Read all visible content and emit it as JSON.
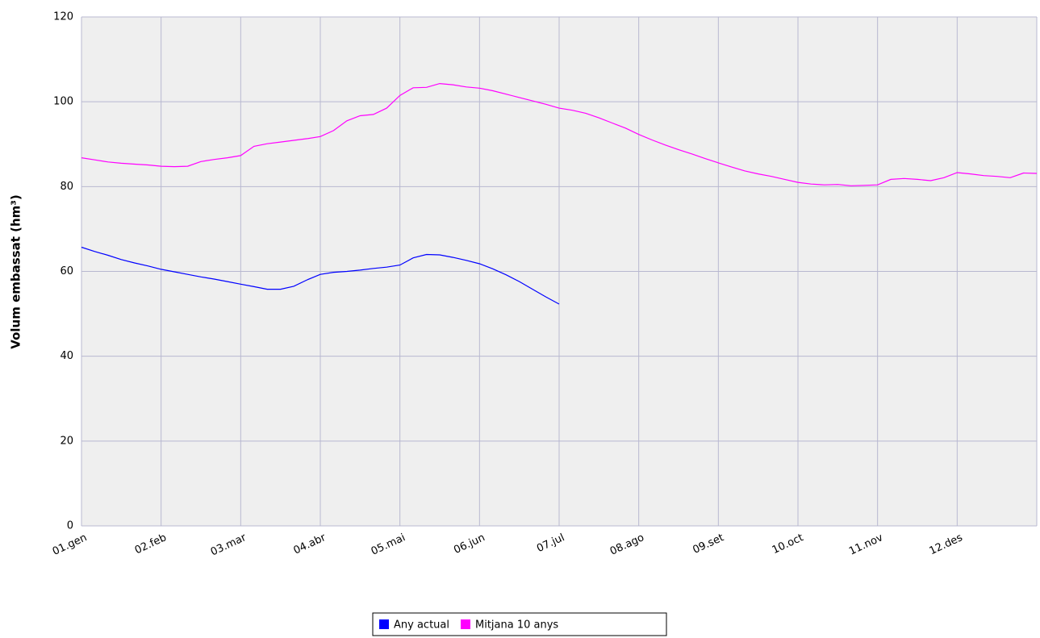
{
  "chart_data": {
    "type": "line",
    "ylabel": "Volum embassat (hm³)",
    "categories": [
      "01.gen",
      null,
      null,
      null,
      null,
      null,
      "02.feb",
      null,
      null,
      null,
      null,
      null,
      "03.mar",
      null,
      null,
      null,
      null,
      null,
      "04.abr",
      null,
      null,
      null,
      null,
      null,
      "05.mai",
      null,
      null,
      null,
      null,
      null,
      "06.jun",
      null,
      null,
      null,
      null,
      null,
      "07.jul",
      null,
      null,
      null,
      null,
      null,
      "08.ago",
      null,
      null,
      null,
      null,
      null,
      "09.set",
      null,
      null,
      null,
      null,
      null,
      "10.oct",
      null,
      null,
      null,
      null,
      null,
      "11.nov",
      null,
      null,
      null,
      null,
      null,
      "12.des",
      null,
      null,
      null,
      null,
      null,
      null
    ],
    "series": [
      {
        "name": "Any actual",
        "color": "#0000ff",
        "values": [
          65.7,
          64.7,
          63.8,
          62.8,
          62.0,
          61.3,
          60.5,
          59.9,
          59.3,
          58.7,
          58.2,
          57.6,
          57.0,
          56.4,
          55.8,
          55.8,
          56.5,
          58.0,
          59.3,
          59.8,
          60.0,
          60.3,
          60.7,
          61.0,
          61.5,
          63.2,
          64.0,
          63.9,
          63.3,
          62.6,
          61.8,
          60.6,
          59.2,
          57.6,
          55.8,
          54.0,
          52.3,
          null,
          null,
          null,
          null,
          null,
          null,
          null,
          null,
          null,
          null,
          null,
          null,
          null,
          null,
          null,
          null,
          null,
          null,
          null,
          null,
          null,
          null,
          null,
          null,
          null,
          null,
          null,
          null,
          null,
          null,
          null,
          null,
          null,
          null,
          null,
          null
        ]
      },
      {
        "name": "Mitjana 10 anys",
        "color": "#ff00ff",
        "values": [
          86.8,
          86.3,
          85.8,
          85.5,
          85.3,
          85.1,
          84.8,
          84.7,
          84.8,
          85.9,
          86.4,
          86.8,
          87.3,
          89.5,
          90.1,
          90.5,
          90.9,
          91.3,
          91.8,
          93.2,
          95.5,
          96.7,
          97.0,
          98.5,
          101.5,
          103.3,
          103.4,
          104.3,
          104.0,
          103.5,
          103.2,
          102.6,
          101.8,
          101.0,
          100.2,
          99.4,
          98.5,
          98.0,
          97.3,
          96.2,
          95.0,
          93.8,
          92.3,
          91.0,
          89.8,
          88.7,
          87.7,
          86.6,
          85.6,
          84.6,
          83.7,
          83.0,
          82.4,
          81.7,
          81.0,
          80.6,
          80.4,
          80.5,
          80.2,
          80.3,
          80.4,
          81.7,
          81.9,
          81.7,
          81.4,
          82.1,
          83.3,
          83.0,
          82.6,
          82.4,
          82.1,
          83.2,
          83.1
        ]
      }
    ],
    "ylim": [
      0,
      120
    ],
    "yticks": [
      0,
      20,
      40,
      60,
      80,
      100,
      120
    ],
    "grid": true,
    "legend": "bottom"
  }
}
